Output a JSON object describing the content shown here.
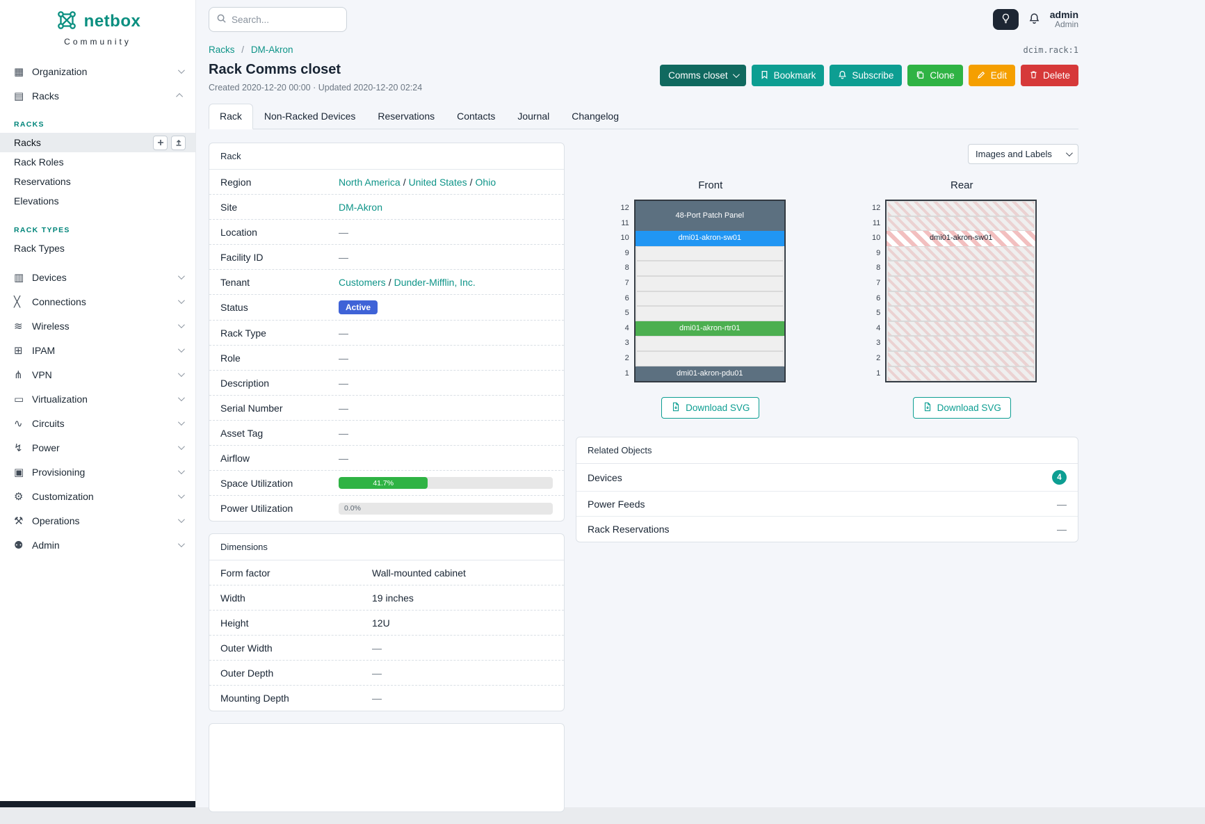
{
  "brand": {
    "logo": "netbox",
    "tagline": "Community"
  },
  "topbar": {
    "search_placeholder": "Search...",
    "user_name": "admin",
    "user_role": "Admin"
  },
  "common": {
    "slash": "/"
  },
  "icons": {
    "organization": "▦",
    "racks": "▤",
    "devices": "▥",
    "connections": "╳",
    "wireless": "≋",
    "ipam": "⊞",
    "vpn": "⋔",
    "virtualization": "▭",
    "circuits": "∿",
    "power": "↯",
    "provisioning": "▣",
    "customization": "⚙",
    "operations": "⚒",
    "admin": "⚉"
  },
  "sidebar": {
    "primary": [
      {
        "label": "Organization"
      },
      {
        "label": "Racks"
      }
    ],
    "racks_group": {
      "label": "RACKS",
      "items": [
        {
          "label": "Racks"
        },
        {
          "label": "Rack Roles"
        },
        {
          "label": "Reservations"
        },
        {
          "label": "Elevations"
        }
      ]
    },
    "rack_types_group": {
      "label": "RACK TYPES",
      "items": [
        {
          "label": "Rack Types"
        }
      ]
    },
    "menu": [
      {
        "label": "Devices"
      },
      {
        "label": "Connections"
      },
      {
        "label": "Wireless"
      },
      {
        "label": "IPAM"
      },
      {
        "label": "VPN"
      },
      {
        "label": "Virtualization"
      },
      {
        "label": "Circuits"
      },
      {
        "label": "Power"
      },
      {
        "label": "Provisioning"
      },
      {
        "label": "Customization"
      },
      {
        "label": "Operations"
      },
      {
        "label": "Admin"
      }
    ]
  },
  "breadcrumb": [
    "Racks",
    "DM-Akron"
  ],
  "page": {
    "object_ref": "dcim.rack:1",
    "title": "Rack Comms closet",
    "meta": "Created 2020-12-20 00:00 · Updated 2020-12-20 02:24"
  },
  "actions": {
    "context": "Comms closet",
    "bookmark": "Bookmark",
    "subscribe": "Subscribe",
    "clone": "Clone",
    "edit": "Edit",
    "delete": "Delete"
  },
  "tabs": [
    "Rack",
    "Non-Racked Devices",
    "Reservations",
    "Contacts",
    "Journal",
    "Changelog"
  ],
  "rack_card": {
    "title": "Rack",
    "region_label": "Region",
    "region_links": [
      "North America",
      "United States",
      "Ohio"
    ],
    "site_label": "Site",
    "site": "DM-Akron",
    "location_label": "Location",
    "location": "—",
    "facility_label": "Facility ID",
    "facility": "—",
    "tenant_label": "Tenant",
    "tenant_links": [
      "Customers",
      "Dunder-Mifflin, Inc."
    ],
    "status_label": "Status",
    "status": "Active",
    "rack_type_label": "Rack Type",
    "rack_type": "—",
    "role_label": "Role",
    "role": "—",
    "description_label": "Description",
    "description": "—",
    "serial_label": "Serial Number",
    "serial": "—",
    "asset_label": "Asset Tag",
    "asset": "—",
    "airflow_label": "Airflow",
    "airflow": "—",
    "space_label": "Space Utilization",
    "space_pct": "41.7%",
    "space_value": 41.7,
    "power_label": "Power Utilization",
    "power_pct": "0.0%",
    "power_value": 0
  },
  "dimensions_card": {
    "title": "Dimensions",
    "rows": [
      {
        "label": "Form factor",
        "value": "Wall-mounted cabinet"
      },
      {
        "label": "Width",
        "value": "19 inches"
      },
      {
        "label": "Height",
        "value": "12U"
      },
      {
        "label": "Outer Width",
        "value": "—"
      },
      {
        "label": "Outer Depth",
        "value": "—"
      },
      {
        "label": "Mounting Depth",
        "value": "—"
      }
    ]
  },
  "elevation": {
    "view_select": "Images and Labels",
    "front_title": "Front",
    "rear_title": "Rear",
    "units": [
      "12",
      "11",
      "10",
      "9",
      "8",
      "7",
      "6",
      "5",
      "4",
      "3",
      "2",
      "1"
    ],
    "front_devices": {
      "patch_panel": "48-Port Patch Panel",
      "switch": "dmi01-akron-sw01",
      "router": "dmi01-akron-rtr01",
      "pdu": "dmi01-akron-pdu01"
    },
    "rear_devices": {
      "switch": "dmi01-akron-sw01"
    },
    "download_label": "Download SVG"
  },
  "related_objects": {
    "title": "Related Objects",
    "rows": [
      {
        "label": "Devices",
        "value": "4"
      },
      {
        "label": "Power Feeds",
        "value": "—"
      },
      {
        "label": "Rack Reservations",
        "value": "—"
      }
    ]
  },
  "colors": {
    "accent": "#00857a",
    "link": "#0e9488",
    "button_teal": "#0d9e92",
    "button_dark_teal": "#10695f",
    "clone_green": "#2fb344",
    "edit_yellow": "#f59f00",
    "delete_red": "#d63939",
    "status_active": "#3f63d7",
    "utilization_green": "#2fb344",
    "device_dark": "#5c7080",
    "device_blue": "#2196f3",
    "device_green": "#4caf50",
    "rear_stripe_red": "#d63939"
  }
}
